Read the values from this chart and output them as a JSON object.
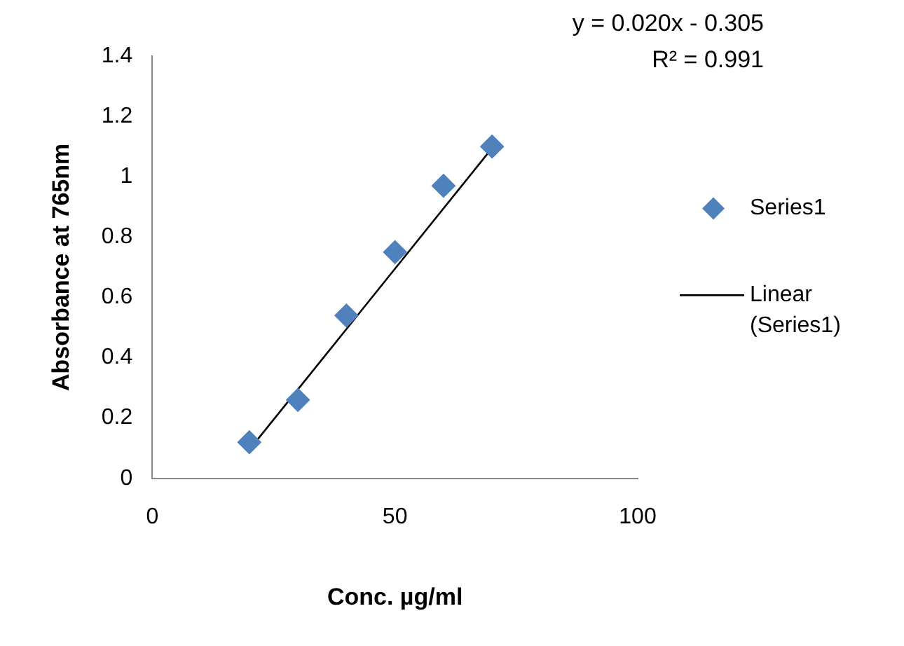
{
  "chart_data": {
    "type": "scatter",
    "xlabel": "Conc. µg/ml",
    "ylabel": "Absorbance at 765nm",
    "annotations": [
      "y = 0.020x - 0.305",
      "R² = 0.991"
    ],
    "xlim": [
      0,
      100
    ],
    "xticks": [
      0,
      50,
      100
    ],
    "ylim": [
      0,
      1.4
    ],
    "yticks": [
      0,
      0.2,
      0.4,
      0.6,
      0.8,
      1,
      1.2,
      1.4
    ],
    "grid": false,
    "legend": "right",
    "series": [
      {
        "name": "Series1",
        "marker": "diamond",
        "color": "#4f81bd",
        "x": [
          20,
          30,
          40,
          50,
          60,
          70
        ],
        "values": [
          0.12,
          0.26,
          0.54,
          0.75,
          0.97,
          1.1
        ]
      },
      {
        "name": "Linear (Series1)",
        "type": "line",
        "marker": "none",
        "color": "#000000",
        "line_style": "solid",
        "x": [
          20,
          70
        ],
        "values": [
          0.095,
          1.095
        ]
      }
    ]
  }
}
